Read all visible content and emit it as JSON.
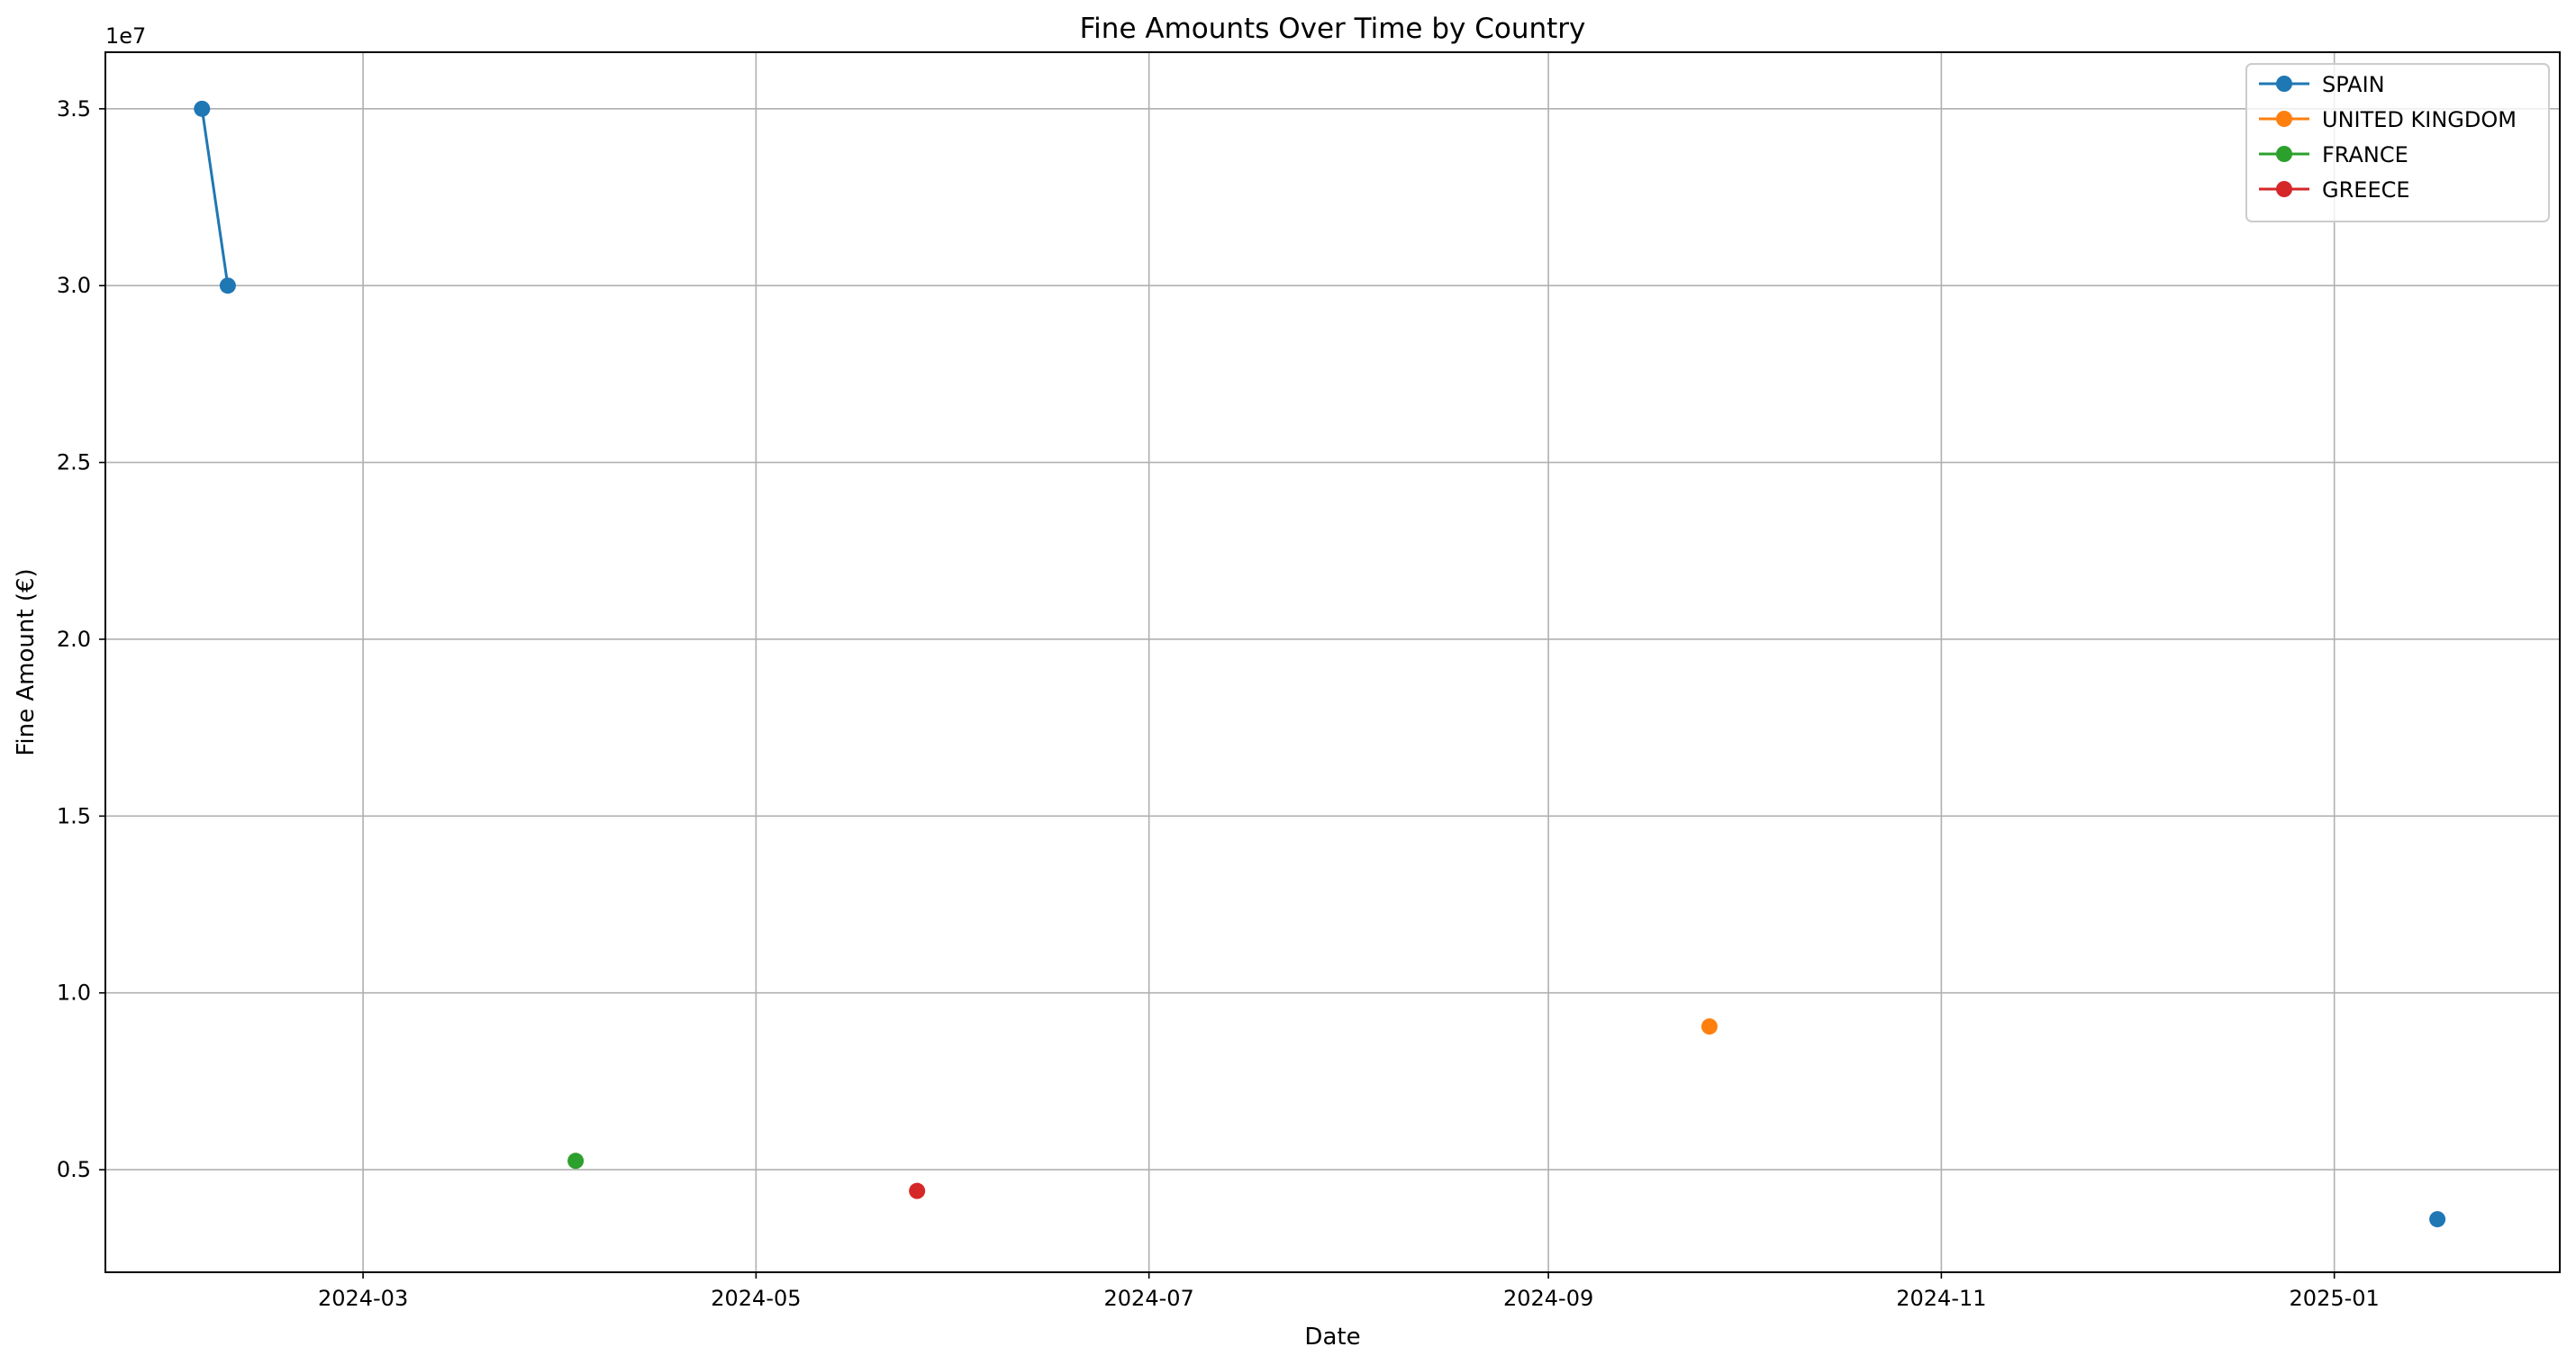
{
  "chart_data": {
    "type": "line",
    "title": "Fine Amounts Over Time by Country",
    "xlabel": "Date",
    "ylabel": "Fine Amount (€)",
    "y_offset_label": "1e7",
    "y_scale_exponent": 7,
    "xlim": [
      "2024-01-21",
      "2025-02-05"
    ],
    "ylim": [
      2100000,
      36600000
    ],
    "x_ticks": [
      {
        "date": "2024-03-01",
        "label": "2024-03"
      },
      {
        "date": "2024-05-01",
        "label": "2024-05"
      },
      {
        "date": "2024-07-01",
        "label": "2024-07"
      },
      {
        "date": "2024-09-01",
        "label": "2024-09"
      },
      {
        "date": "2024-11-01",
        "label": "2024-11"
      },
      {
        "date": "2025-01-01",
        "label": "2025-01"
      }
    ],
    "y_ticks": [
      {
        "value": 5000000,
        "label": "0.5"
      },
      {
        "value": 10000000,
        "label": "1.0"
      },
      {
        "value": 15000000,
        "label": "1.5"
      },
      {
        "value": 20000000,
        "label": "2.0"
      },
      {
        "value": 25000000,
        "label": "2.5"
      },
      {
        "value": 30000000,
        "label": "3.0"
      },
      {
        "value": 35000000,
        "label": "3.5"
      }
    ],
    "grid": true,
    "legend_position": "top-right",
    "series": [
      {
        "name": "SPAIN",
        "color": "#1f77b4",
        "points": [
          {
            "x": "2024-02-05",
            "y": 35000000
          },
          {
            "x": "2024-02-09",
            "y": 30000000
          },
          {
            "x": "2025-01-17",
            "y": 3600000
          }
        ],
        "connected_points": 2
      },
      {
        "name": "UNITED KINGDOM",
        "color": "#ff7f0e",
        "points": [
          {
            "x": "2024-09-26",
            "y": 9050000
          }
        ],
        "connected_points": 1
      },
      {
        "name": "FRANCE",
        "color": "#2ca02c",
        "points": [
          {
            "x": "2024-04-03",
            "y": 5250000
          }
        ],
        "connected_points": 1
      },
      {
        "name": "GREECE",
        "color": "#d62728",
        "points": [
          {
            "x": "2024-05-26",
            "y": 4400000
          }
        ],
        "connected_points": 1
      }
    ]
  }
}
